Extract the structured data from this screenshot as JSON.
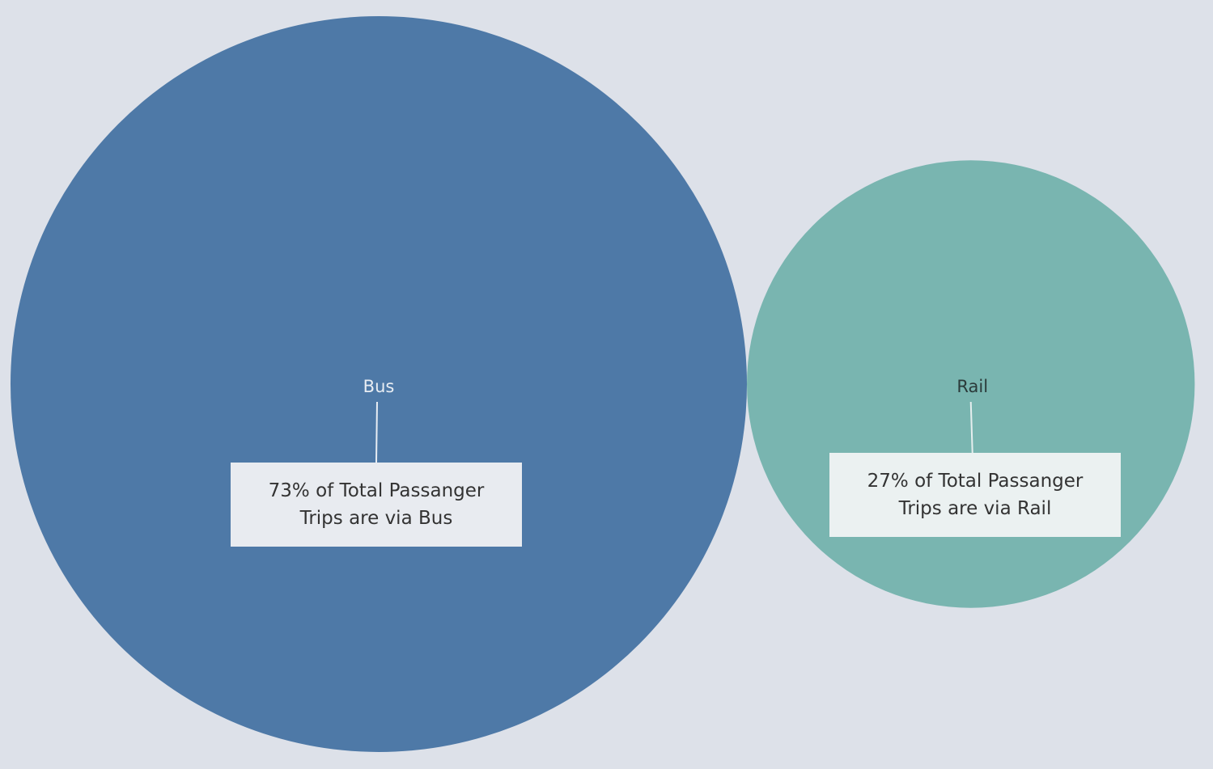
{
  "chart_data": {
    "type": "bubble",
    "series": [
      {
        "name": "Bus",
        "share_percent": 73,
        "color": "#4e79a7",
        "label_color": "#e8edf3",
        "annotation": [
          "73% of Total Passanger",
          "Trips are via Bus"
        ],
        "annotation_bg": "#e8ebf0"
      },
      {
        "name": "Rail",
        "share_percent": 27,
        "color": "#79b5b0",
        "label_color": "#2b3a3a",
        "annotation": [
          "27% of Total Passanger",
          "Trips are via Rail"
        ],
        "annotation_bg": "#ebf1f1"
      }
    ]
  },
  "colors": {
    "background": "#dde1e9",
    "leader_line": "#e8edf3"
  }
}
